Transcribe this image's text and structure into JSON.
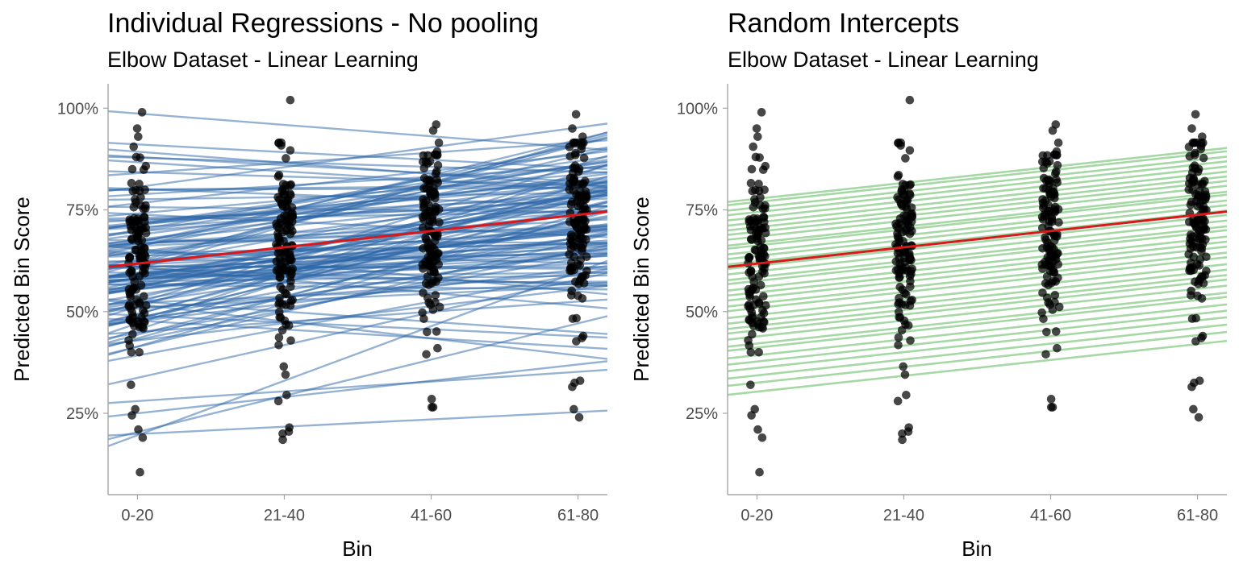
{
  "chart_data": [
    {
      "type": "scatter",
      "title": "Individual Regressions - No pooling",
      "subtitle": "Elbow Dataset - Linear Learning",
      "xlabel": "Bin",
      "ylabel": "Predicted Bin Score",
      "categories": [
        "0-20",
        "21-40",
        "41-60",
        "61-80"
      ],
      "x_range": [
        0.8,
        4.2
      ],
      "ylim": [
        5,
        106
      ],
      "yticks": [
        25,
        50,
        75,
        100
      ],
      "ytick_labels": [
        "25%",
        "50%",
        "75%",
        "100%"
      ],
      "grid": false,
      "fixed_effect": {
        "intercept": 57.8,
        "slope": 4.0,
        "color": "#d7191c"
      },
      "individual_lines": {
        "color": "#2c66a8",
        "count": 120,
        "notable_lines": [
          {
            "intercept": 6.2,
            "slope": 13.4
          },
          {
            "intercept": 11.5,
            "slope": 8.9
          },
          {
            "intercept": 18.1,
            "slope": 1.8
          },
          {
            "intercept": 101.5,
            "slope": -2.8
          },
          {
            "intercept": 93.0,
            "slope": -1.9
          },
          {
            "intercept": 21.0,
            "slope": 4.0
          },
          {
            "intercept": 25.6,
            "slope": 2.4
          },
          {
            "intercept": 90.0,
            "slope": -2.0
          },
          {
            "intercept": 56.0,
            "slope": -4.2
          },
          {
            "intercept": 55.0,
            "slope": -2.5
          }
        ]
      },
      "points": {
        "color": "#000000",
        "per_bin": 120,
        "outliers": [
          [
            1,
            99
          ],
          [
            1,
            95
          ],
          [
            1,
            93
          ],
          [
            1,
            88
          ],
          [
            1,
            32
          ],
          [
            1,
            26
          ],
          [
            1,
            24.5
          ],
          [
            1,
            21
          ],
          [
            1,
            19
          ],
          [
            1,
            10.5
          ],
          [
            2,
            102
          ],
          [
            2,
            36.5
          ],
          [
            2,
            34.5
          ],
          [
            2,
            29.5
          ],
          [
            2,
            28
          ],
          [
            2,
            21.5
          ],
          [
            2,
            20.5
          ],
          [
            2,
            20
          ],
          [
            2,
            18.5
          ],
          [
            3,
            96
          ],
          [
            3,
            94.5
          ],
          [
            3,
            45
          ],
          [
            3,
            41
          ],
          [
            3,
            39.5
          ],
          [
            3,
            28.5
          ],
          [
            3,
            26.5
          ],
          [
            3,
            26.5
          ],
          [
            4,
            98.5
          ],
          [
            4,
            95
          ],
          [
            4,
            93
          ],
          [
            4,
            44
          ],
          [
            4,
            43.5
          ],
          [
            4,
            33
          ],
          [
            4,
            32.5
          ],
          [
            4,
            31.5
          ],
          [
            4,
            26
          ],
          [
            4,
            24
          ]
        ]
      }
    },
    {
      "type": "scatter",
      "title": "Random Intercepts",
      "subtitle": "Elbow Dataset - Linear Learning",
      "xlabel": "Bin",
      "ylabel": "Predicted Bin Score",
      "categories": [
        "0-20",
        "21-40",
        "41-60",
        "61-80"
      ],
      "x_range": [
        0.8,
        4.2
      ],
      "ylim": [
        5,
        106
      ],
      "yticks": [
        25,
        50,
        75,
        100
      ],
      "ytick_labels": [
        "25%",
        "50%",
        "75%",
        "100%"
      ],
      "grid": false,
      "fixed_effect": {
        "intercept": 57.8,
        "slope": 4.0,
        "color": "#d7191c"
      },
      "individual_lines": {
        "color": "#5cb85c",
        "count": 36,
        "slope": 3.9,
        "intercept_range": [
          26.4,
          74.0
        ]
      },
      "points": {
        "color": "#000000",
        "per_bin": 120,
        "outliers": [
          [
            1,
            99
          ],
          [
            1,
            95
          ],
          [
            1,
            93
          ],
          [
            1,
            88
          ],
          [
            1,
            32
          ],
          [
            1,
            26
          ],
          [
            1,
            24.5
          ],
          [
            1,
            21
          ],
          [
            1,
            19
          ],
          [
            1,
            10.5
          ],
          [
            2,
            102
          ],
          [
            2,
            36.5
          ],
          [
            2,
            34.5
          ],
          [
            2,
            29.5
          ],
          [
            2,
            28
          ],
          [
            2,
            21.5
          ],
          [
            2,
            20.5
          ],
          [
            2,
            20
          ],
          [
            2,
            18.5
          ],
          [
            3,
            96
          ],
          [
            3,
            94.5
          ],
          [
            3,
            45
          ],
          [
            3,
            41
          ],
          [
            3,
            39.5
          ],
          [
            3,
            28.5
          ],
          [
            3,
            26.5
          ],
          [
            3,
            26.5
          ],
          [
            4,
            98.5
          ],
          [
            4,
            95
          ],
          [
            4,
            93
          ],
          [
            4,
            44
          ],
          [
            4,
            43.5
          ],
          [
            4,
            33
          ],
          [
            4,
            32.5
          ],
          [
            4,
            31.5
          ],
          [
            4,
            26
          ],
          [
            4,
            24
          ]
        ]
      }
    }
  ]
}
